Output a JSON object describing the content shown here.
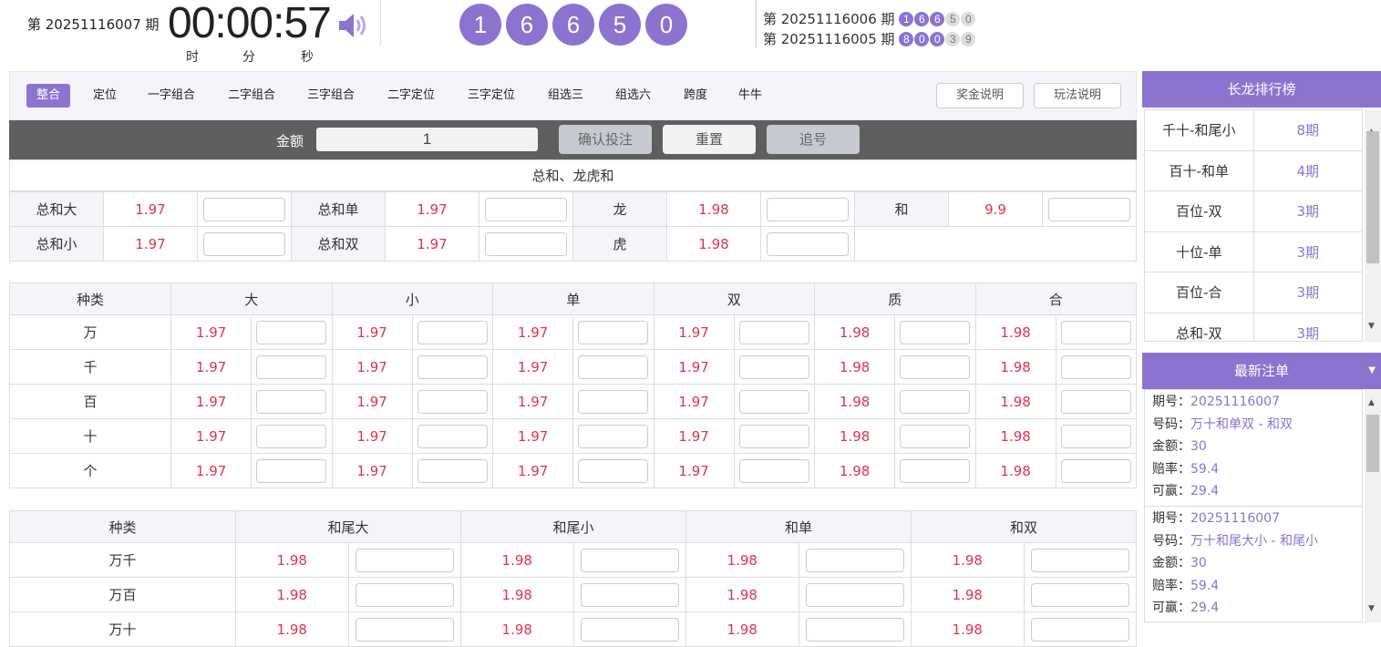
{
  "header": {
    "period": "第 20251116007 期",
    "timer": "00:00:57",
    "units": [
      "时",
      "分",
      "秒"
    ],
    "balls": [
      "1",
      "6",
      "6",
      "5",
      "0"
    ],
    "history": [
      {
        "period": "第 20251116006 期",
        "balls": [
          "1",
          "6",
          "6",
          "5",
          "0"
        ],
        "highlight": 3
      },
      {
        "period": "第 20251116005 期",
        "balls": [
          "8",
          "0",
          "0",
          "3",
          "9"
        ],
        "highlight": 3
      }
    ]
  },
  "tabs": [
    "整合",
    "定位",
    "一字组合",
    "二字组合",
    "三字组合",
    "二字定位",
    "三字定位",
    "组选三",
    "组选六",
    "跨度",
    "牛牛"
  ],
  "active_tab": "整合",
  "tab_buttons": [
    "奖金说明",
    "玩法说明"
  ],
  "bet_bar": {
    "amount_label": "金额",
    "amount_value": "1",
    "confirm": "确认投注",
    "reset": "重置",
    "chase": "追号"
  },
  "section1": {
    "title": "总和、龙虎和",
    "rows": [
      [
        {
          "label": "总和大",
          "odds": "1.97"
        },
        {
          "label": "总和单",
          "odds": "1.97"
        },
        {
          "label": "龙",
          "odds": "1.98"
        },
        {
          "label": "和",
          "odds": "9.9"
        }
      ],
      [
        {
          "label": "总和小",
          "odds": "1.97"
        },
        {
          "label": "总和双",
          "odds": "1.97"
        },
        {
          "label": "虎",
          "odds": "1.98"
        }
      ]
    ]
  },
  "section2": {
    "headers": [
      "种类",
      "大",
      "小",
      "单",
      "双",
      "质",
      "合"
    ],
    "rows": [
      {
        "label": "万",
        "odds": [
          "1.97",
          "1.97",
          "1.97",
          "1.97",
          "1.98",
          "1.98"
        ]
      },
      {
        "label": "千",
        "odds": [
          "1.97",
          "1.97",
          "1.97",
          "1.97",
          "1.98",
          "1.98"
        ]
      },
      {
        "label": "百",
        "odds": [
          "1.97",
          "1.97",
          "1.97",
          "1.97",
          "1.98",
          "1.98"
        ]
      },
      {
        "label": "十",
        "odds": [
          "1.97",
          "1.97",
          "1.97",
          "1.97",
          "1.98",
          "1.98"
        ]
      },
      {
        "label": "个",
        "odds": [
          "1.97",
          "1.97",
          "1.97",
          "1.97",
          "1.98",
          "1.98"
        ]
      }
    ]
  },
  "section3": {
    "headers": [
      "种类",
      "和尾大",
      "和尾小",
      "和单",
      "和双"
    ],
    "rows": [
      {
        "label": "万千",
        "odds": [
          "1.98",
          "1.98",
          "1.98",
          "1.98"
        ]
      },
      {
        "label": "万百",
        "odds": [
          "1.98",
          "1.98",
          "1.98",
          "1.98"
        ]
      },
      {
        "label": "万十",
        "odds": [
          "1.98",
          "1.98",
          "1.98",
          "1.98"
        ]
      }
    ]
  },
  "dragon_board": {
    "title": "长龙排行榜",
    "items": [
      {
        "name": "千十-和尾小",
        "count": "8期"
      },
      {
        "name": "百十-和单",
        "count": "4期"
      },
      {
        "name": "百位-双",
        "count": "3期"
      },
      {
        "name": "十位-单",
        "count": "3期"
      },
      {
        "name": "百位-合",
        "count": "3期"
      },
      {
        "name": "总和-双",
        "count": "3期"
      }
    ]
  },
  "latest_orders": {
    "title": "最新注单",
    "labels": [
      "期号：",
      "号码：",
      "金额：",
      "赔率：",
      "可赢："
    ],
    "items": [
      [
        "20251116007",
        "万十和单双 - 和双",
        "30",
        "59.4",
        "29.4"
      ],
      [
        "20251116007",
        "万十和尾大小 - 和尾小",
        "30",
        "59.4",
        "29.4"
      ]
    ]
  },
  "colors": {
    "accent": "#8c73d0",
    "odds": "#e0334e",
    "bar": "#5f5f5f"
  }
}
